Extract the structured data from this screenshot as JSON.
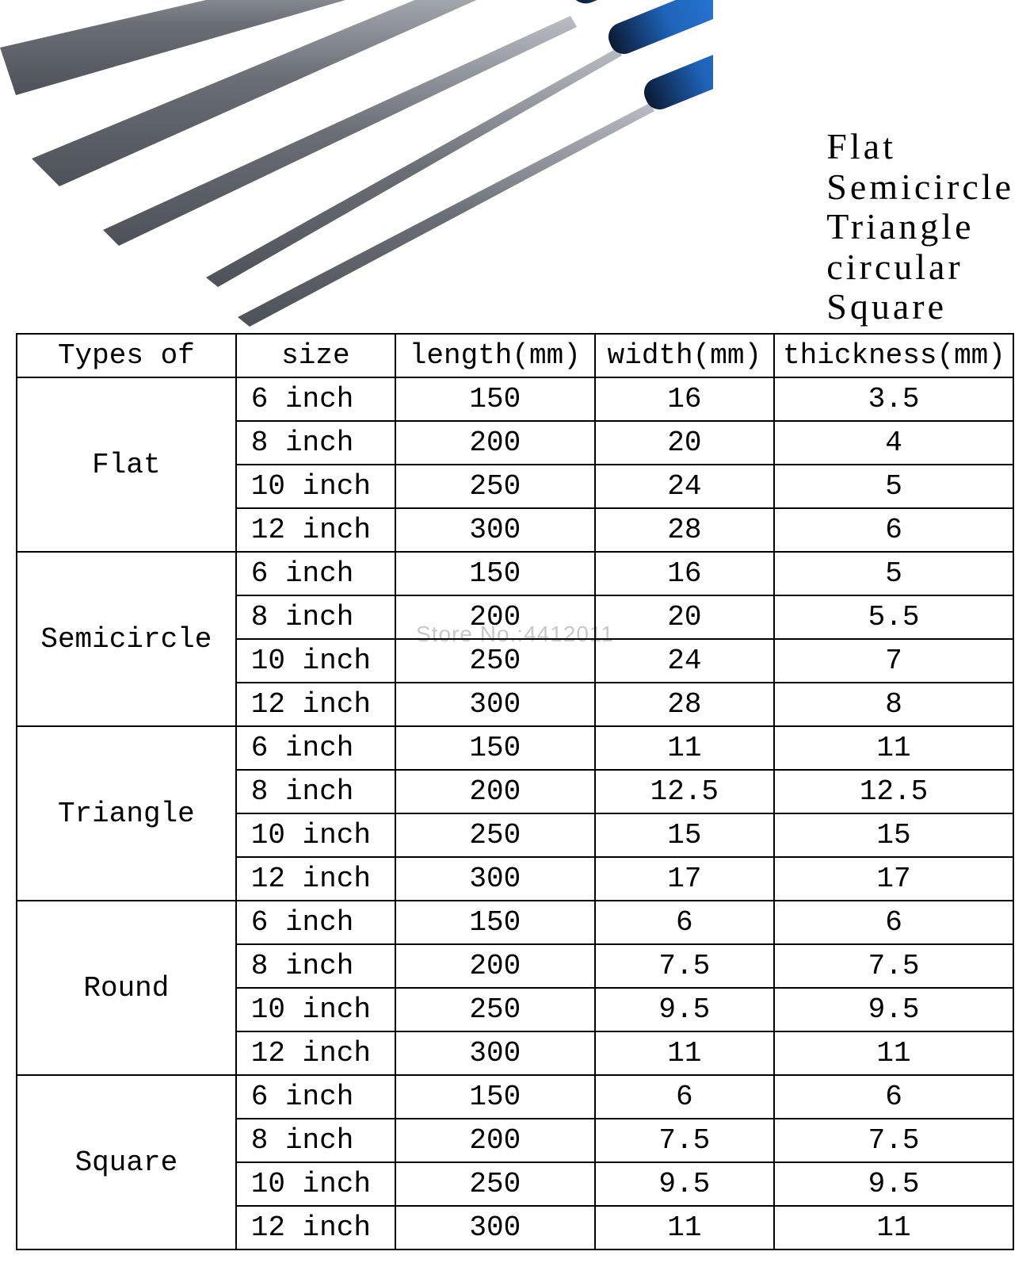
{
  "hero": {
    "labels": [
      "Flat",
      "Semicircle",
      "Triangle",
      "circular",
      "Square"
    ],
    "label_fontsize": 46,
    "label_color": "#000000",
    "tools": {
      "blade_color": "#6a6f76",
      "blade_highlight": "#b9bec4",
      "handle_blue": "#1e63b8",
      "handle_dark": "#0b1a33",
      "background": "#ffffff"
    }
  },
  "watermark": "Store No.:4412011",
  "table": {
    "font_family": "Courier New, monospace",
    "fontsize": 36,
    "border_color": "#000000",
    "columns": [
      "Types of",
      "size",
      "length(mm)",
      "width(mm)",
      "thickness(mm)"
    ],
    "col_widths_pct": [
      22,
      16,
      20,
      18,
      24
    ],
    "groups": [
      {
        "type": "Flat",
        "rows": [
          {
            "size": "6  inch",
            "length": "150",
            "width": "16",
            "thickness": "3.5"
          },
          {
            "size": "8  inch",
            "length": "200",
            "width": "20",
            "thickness": "4"
          },
          {
            "size": "10 inch",
            "length": "250",
            "width": "24",
            "thickness": "5"
          },
          {
            "size": "12 inch",
            "length": "300",
            "width": "28",
            "thickness": "6"
          }
        ]
      },
      {
        "type": "Semicircle",
        "rows": [
          {
            "size": "6  inch",
            "length": "150",
            "width": "16",
            "thickness": "5"
          },
          {
            "size": "8  inch",
            "length": "200",
            "width": "20",
            "thickness": "5.5"
          },
          {
            "size": "10 inch",
            "length": "250",
            "width": "24",
            "thickness": "7"
          },
          {
            "size": "12 inch",
            "length": "300",
            "width": "28",
            "thickness": "8"
          }
        ]
      },
      {
        "type": "Triangle",
        "rows": [
          {
            "size": "6  inch",
            "length": "150",
            "width": "11",
            "thickness": "11"
          },
          {
            "size": "8  inch",
            "length": "200",
            "width": "12.5",
            "thickness": "12.5"
          },
          {
            "size": "10 inch",
            "length": "250",
            "width": "15",
            "thickness": "15"
          },
          {
            "size": "12 inch",
            "length": "300",
            "width": "17",
            "thickness": "17"
          }
        ]
      },
      {
        "type": "Round",
        "rows": [
          {
            "size": "6  inch",
            "length": "150",
            "width": "6",
            "thickness": "6"
          },
          {
            "size": "8  inch",
            "length": "200",
            "width": "7.5",
            "thickness": "7.5"
          },
          {
            "size": "10 inch",
            "length": "250",
            "width": "9.5",
            "thickness": "9.5"
          },
          {
            "size": "12 inch",
            "length": "300",
            "width": "11",
            "thickness": "11"
          }
        ]
      },
      {
        "type": "Square",
        "rows": [
          {
            "size": "6  inch",
            "length": "150",
            "width": "6",
            "thickness": "6"
          },
          {
            "size": "8  inch",
            "length": "200",
            "width": "7.5",
            "thickness": "7.5"
          },
          {
            "size": "10 inch",
            "length": "250",
            "width": "9.5",
            "thickness": "9.5"
          },
          {
            "size": "12 inch",
            "length": "300",
            "width": "11",
            "thickness": "11"
          }
        ]
      }
    ]
  }
}
